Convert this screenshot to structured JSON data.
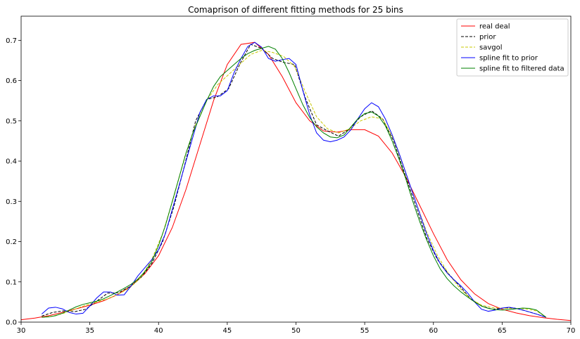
{
  "chart_data": {
    "type": "line",
    "title": "Comaprison of different fitting methods for 25 bins",
    "xlabel": "",
    "ylabel": "",
    "xlim": [
      30,
      70
    ],
    "ylim": [
      0,
      0.76
    ],
    "xticks": [
      30,
      35,
      40,
      45,
      50,
      55,
      60,
      65,
      70
    ],
    "yticks": [
      0.0,
      0.1,
      0.2,
      0.3,
      0.4,
      0.5,
      0.6,
      0.7
    ],
    "xtick_labels": [
      "30",
      "35",
      "40",
      "45",
      "50",
      "55",
      "60",
      "65",
      "70"
    ],
    "ytick_labels": [
      "0.0",
      "0.1",
      "0.2",
      "0.3",
      "0.4",
      "0.5",
      "0.6",
      "0.7"
    ],
    "grid": false,
    "legend_position": "top-right",
    "series": [
      {
        "name": "real deal",
        "color": "#ff0000",
        "dash": "solid",
        "x": [
          30,
          31,
          32,
          33,
          34,
          35,
          36,
          37,
          38,
          39,
          40,
          41,
          42,
          43,
          44,
          45,
          46,
          47,
          48,
          49,
          50,
          51,
          52,
          53,
          54,
          55,
          56,
          57,
          58,
          59,
          60,
          61,
          62,
          63,
          64,
          65,
          66,
          67,
          68,
          69,
          70
        ],
        "y": [
          0.006,
          0.01,
          0.016,
          0.024,
          0.033,
          0.042,
          0.053,
          0.068,
          0.09,
          0.12,
          0.165,
          0.235,
          0.33,
          0.44,
          0.55,
          0.64,
          0.69,
          0.695,
          0.665,
          0.61,
          0.545,
          0.5,
          0.475,
          0.472,
          0.478,
          0.478,
          0.462,
          0.42,
          0.36,
          0.29,
          0.22,
          0.155,
          0.105,
          0.07,
          0.046,
          0.032,
          0.023,
          0.016,
          0.011,
          0.007,
          0.004
        ]
      },
      {
        "name": "prior",
        "color": "#000000",
        "dash": "dashed",
        "x": [
          31.5,
          32.3,
          33.1,
          33.9,
          34.7,
          35.5,
          36.3,
          37.1,
          37.9,
          38.7,
          39.5,
          40.3,
          41.1,
          41.9,
          42.7,
          43.5,
          44.3,
          45.1,
          45.9,
          46.7,
          47.5,
          48.3,
          49.1,
          49.9,
          50.7,
          51.5,
          52.3,
          53.1,
          53.9,
          54.7,
          55.5,
          56.3,
          57.1,
          57.9,
          58.7,
          59.5,
          60.3,
          61.1,
          61.9,
          62.7,
          63.5,
          64.3,
          65.1,
          65.9,
          66.7,
          67.5,
          68.2
        ],
        "y": [
          0.015,
          0.024,
          0.028,
          0.026,
          0.032,
          0.052,
          0.072,
          0.073,
          0.088,
          0.11,
          0.145,
          0.2,
          0.285,
          0.39,
          0.5,
          0.553,
          0.56,
          0.58,
          0.64,
          0.69,
          0.68,
          0.655,
          0.645,
          0.64,
          0.555,
          0.49,
          0.475,
          0.462,
          0.48,
          0.51,
          0.525,
          0.505,
          0.45,
          0.37,
          0.29,
          0.21,
          0.155,
          0.12,
          0.09,
          0.058,
          0.04,
          0.032,
          0.035,
          0.035,
          0.028,
          0.02,
          0.012
        ]
      },
      {
        "name": "savgol",
        "color": "#c8c800",
        "dash": "dashed",
        "x": [
          31.5,
          32.3,
          33.1,
          33.9,
          34.7,
          35.5,
          36.3,
          37.1,
          37.9,
          38.7,
          39.5,
          40.3,
          41.1,
          41.9,
          42.7,
          43.5,
          44.3,
          45.1,
          45.9,
          46.7,
          47.5,
          48.3,
          49.1,
          49.9,
          50.7,
          51.5,
          52.3,
          53.1,
          53.9,
          54.7,
          55.5,
          56.3,
          57.1,
          57.9,
          58.7,
          59.5,
          60.3,
          61.1,
          61.9,
          62.7,
          63.5,
          64.3,
          65.1,
          65.9,
          66.7,
          67.5,
          68.2
        ],
        "y": [
          0.012,
          0.015,
          0.022,
          0.032,
          0.042,
          0.05,
          0.058,
          0.07,
          0.085,
          0.11,
          0.155,
          0.22,
          0.31,
          0.41,
          0.49,
          0.55,
          0.59,
          0.615,
          0.64,
          0.665,
          0.675,
          0.67,
          0.66,
          0.635,
          0.57,
          0.51,
          0.48,
          0.47,
          0.48,
          0.5,
          0.51,
          0.505,
          0.455,
          0.38,
          0.3,
          0.225,
          0.165,
          0.12,
          0.085,
          0.058,
          0.042,
          0.036,
          0.034,
          0.034,
          0.033,
          0.028,
          0.012
        ]
      },
      {
        "name": "spline fit to prior",
        "color": "#0000ff",
        "dash": "solid",
        "x": [
          31.5,
          32,
          32.5,
          33,
          33.5,
          34,
          34.5,
          35,
          35.5,
          36,
          36.5,
          37,
          37.5,
          38,
          38.5,
          39,
          39.5,
          40,
          40.5,
          41,
          41.5,
          42,
          42.5,
          43,
          43.5,
          44,
          44.5,
          45,
          45.5,
          46,
          46.5,
          47,
          47.5,
          48,
          48.5,
          49,
          49.5,
          50,
          50.5,
          51,
          51.5,
          52,
          52.5,
          53,
          53.5,
          54,
          54.5,
          55,
          55.5,
          56,
          56.5,
          57,
          57.5,
          58,
          58.5,
          59,
          59.5,
          60,
          60.5,
          61,
          61.5,
          62,
          62.5,
          63,
          63.5,
          64,
          64.5,
          65,
          65.5,
          66,
          66.5,
          67,
          67.5,
          68.2
        ],
        "y": [
          0.02,
          0.035,
          0.037,
          0.033,
          0.024,
          0.02,
          0.022,
          0.04,
          0.06,
          0.075,
          0.075,
          0.067,
          0.068,
          0.09,
          0.115,
          0.135,
          0.155,
          0.18,
          0.22,
          0.28,
          0.34,
          0.4,
          0.46,
          0.52,
          0.553,
          0.562,
          0.562,
          0.575,
          0.62,
          0.655,
          0.685,
          0.695,
          0.683,
          0.655,
          0.648,
          0.652,
          0.655,
          0.64,
          0.575,
          0.515,
          0.47,
          0.452,
          0.448,
          0.452,
          0.46,
          0.478,
          0.505,
          0.53,
          0.545,
          0.535,
          0.505,
          0.465,
          0.42,
          0.37,
          0.32,
          0.27,
          0.22,
          0.178,
          0.145,
          0.122,
          0.105,
          0.09,
          0.072,
          0.05,
          0.032,
          0.027,
          0.03,
          0.035,
          0.037,
          0.034,
          0.03,
          0.025,
          0.02,
          0.012
        ]
      },
      {
        "name": "spline fit to filtered data",
        "color": "#008000",
        "dash": "solid",
        "x": [
          31.5,
          32,
          32.5,
          33,
          33.5,
          34,
          34.5,
          35,
          35.5,
          36,
          36.5,
          37,
          37.5,
          38,
          38.5,
          39,
          39.5,
          40,
          40.5,
          41,
          41.5,
          42,
          42.5,
          43,
          43.5,
          44,
          44.5,
          45,
          45.5,
          46,
          46.5,
          47,
          47.5,
          48,
          48.5,
          49,
          49.5,
          50,
          50.5,
          51,
          51.5,
          52,
          52.5,
          53,
          53.5,
          54,
          54.5,
          55,
          55.5,
          56,
          56.5,
          57,
          57.5,
          58,
          58.5,
          59,
          59.5,
          60,
          60.5,
          61,
          61.5,
          62,
          62.5,
          63,
          63.5,
          64,
          64.5,
          65,
          65.5,
          66,
          66.5,
          67,
          67.5,
          68.2
        ],
        "y": [
          0.012,
          0.013,
          0.016,
          0.022,
          0.03,
          0.038,
          0.044,
          0.048,
          0.052,
          0.058,
          0.066,
          0.075,
          0.084,
          0.094,
          0.107,
          0.125,
          0.15,
          0.19,
          0.24,
          0.3,
          0.36,
          0.42,
          0.47,
          0.51,
          0.55,
          0.585,
          0.61,
          0.625,
          0.64,
          0.655,
          0.667,
          0.675,
          0.68,
          0.685,
          0.678,
          0.655,
          0.62,
          0.58,
          0.54,
          0.508,
          0.485,
          0.47,
          0.46,
          0.458,
          0.465,
          0.485,
          0.505,
          0.518,
          0.522,
          0.512,
          0.488,
          0.45,
          0.405,
          0.355,
          0.3,
          0.25,
          0.205,
          0.165,
          0.132,
          0.108,
          0.09,
          0.075,
          0.062,
          0.05,
          0.04,
          0.034,
          0.031,
          0.03,
          0.031,
          0.033,
          0.035,
          0.034,
          0.03,
          0.012
        ]
      }
    ]
  }
}
